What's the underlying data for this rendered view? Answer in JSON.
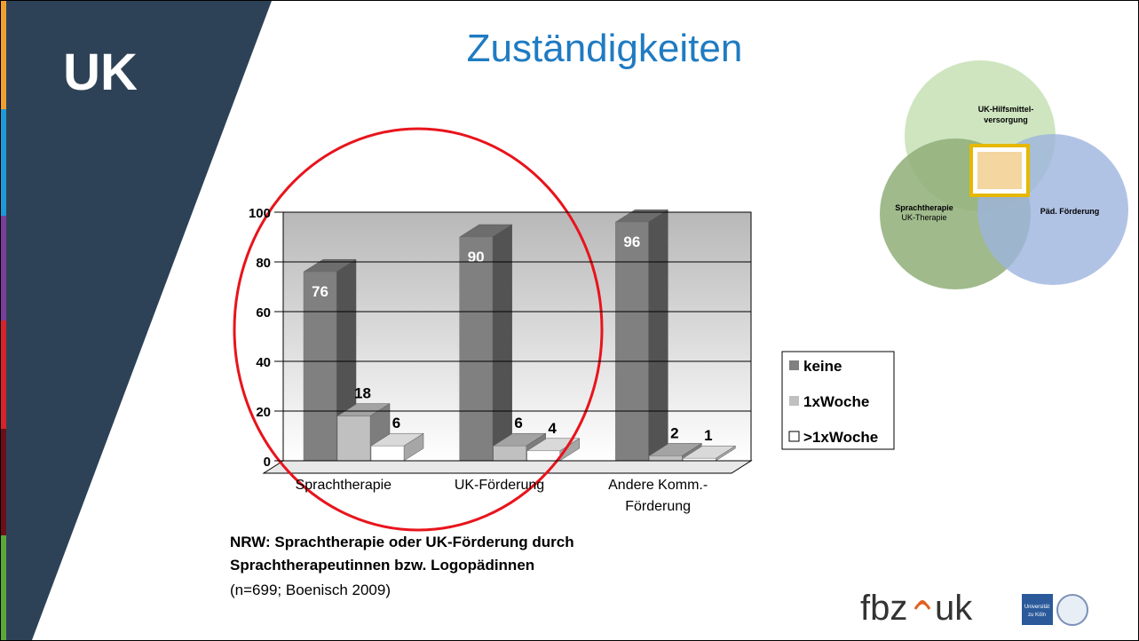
{
  "slide": {
    "badge": "UK",
    "title": "Zuständigkeiten",
    "caption_lines": [
      "NRW: Sprachtherapie oder UK-Förderung durch",
      "Sprachtherapeutinnen bzw. Logopädinnen"
    ],
    "caption_note": "(n=699; Boenisch 2009)",
    "venn": {
      "top_lines": [
        "UK-Hilfsmittel-",
        "versorgung"
      ],
      "left_lines": [
        "Sprachtherapie",
        "UK-Therapie"
      ],
      "right": "Päd. Förderung"
    },
    "logo": {
      "text": "fbz",
      "text2": "uk",
      "university_lines": [
        "Universität",
        "zu Köln"
      ]
    }
  },
  "chart_data": {
    "type": "bar3d",
    "categories": [
      "Sprachtherapie",
      "UK-Förderung",
      "Andere Komm.- Förderung"
    ],
    "series": [
      {
        "name": "keine",
        "color": "#808080",
        "values": [
          76,
          90,
          96
        ]
      },
      {
        "name": "1xWoche",
        "color": "#c0c0c0",
        "values": [
          18,
          6,
          2
        ]
      },
      {
        "name": ">1xWoche",
        "color": "#ffffff",
        "values": [
          6,
          4,
          1
        ]
      }
    ],
    "ylim": [
      0,
      100
    ],
    "yticks": [
      0,
      20,
      40,
      60,
      80,
      100
    ],
    "grid": true
  }
}
